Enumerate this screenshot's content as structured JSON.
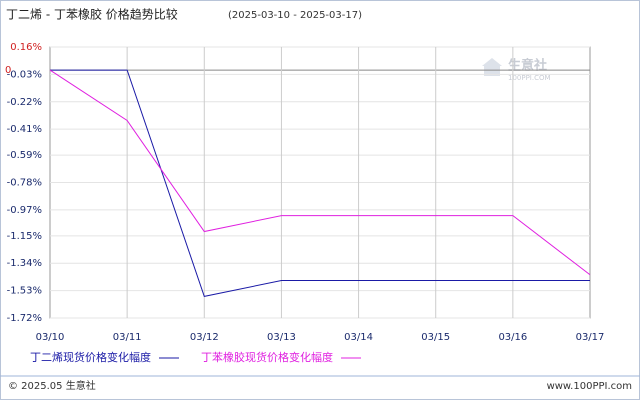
{
  "chart_data": {
    "type": "line",
    "title": "丁二烯 - 丁苯橡胶 价格趋势比较",
    "subtitle": "(2025-03-10 - 2025-03-17)",
    "categories": [
      "03/10",
      "03/11",
      "03/12",
      "03/13",
      "03/14",
      "03/15",
      "03/16",
      "03/17"
    ],
    "series": [
      {
        "name": "丁二烯现货价格变化幅度",
        "color": "#1a1aa6",
        "values": [
          0,
          0,
          -1.57,
          -1.46,
          -1.46,
          -1.46,
          -1.46,
          -1.46
        ]
      },
      {
        "name": "丁苯橡胶现货价格变化幅度",
        "color": "#e020e0",
        "values": [
          0,
          -0.35,
          -1.12,
          -1.01,
          -1.01,
          -1.01,
          -1.01,
          -1.42
        ]
      }
    ],
    "ylim": [
      -1.72,
      0.16
    ],
    "yticks": [
      {
        "value": 0.16,
        "label": "0.16%"
      },
      0,
      {
        "value": -0.03,
        "label": "-0.03%"
      },
      {
        "value": -0.22,
        "label": "-0.22%"
      },
      {
        "value": -0.41,
        "label": "-0.41%"
      },
      {
        "value": -0.59,
        "label": "-0.59%"
      },
      {
        "value": -0.78,
        "label": "-0.78%"
      },
      {
        "value": -0.97,
        "label": "-0.97%"
      },
      {
        "value": -1.15,
        "label": "-1.15%"
      },
      {
        "value": -1.34,
        "label": "-1.34%"
      },
      {
        "value": -1.53,
        "label": "-1.53%"
      },
      {
        "value": -1.72,
        "label": "-1.72%"
      }
    ],
    "grid": true,
    "watermark": {
      "name": "生意社",
      "site": "100PPI.COM"
    },
    "footer": {
      "left": "© 2025.05 生意社",
      "right": "www.100PPI.com"
    }
  }
}
